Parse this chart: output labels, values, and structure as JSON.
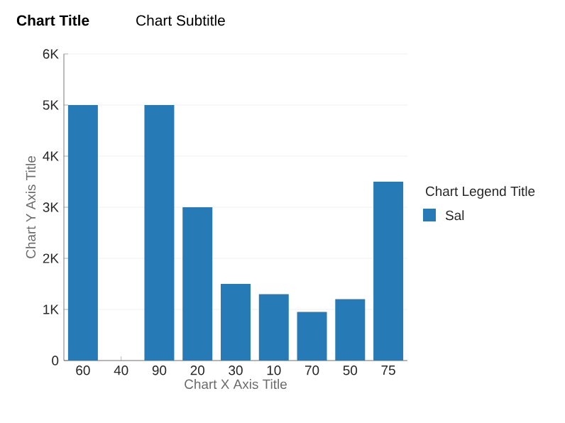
{
  "chart_data": {
    "type": "bar",
    "title": "Chart Title",
    "subtitle": "Chart Subtitle",
    "xlabel": "Chart X Axis Title",
    "ylabel": "Chart Y Axis Title",
    "legend_title": "Chart Legend Title",
    "categories": [
      "60",
      "40",
      "90",
      "20",
      "30",
      "10",
      "70",
      "50",
      "75"
    ],
    "series": [
      {
        "name": "Sal",
        "color": "#267ab6",
        "values": [
          5000,
          null,
          5000,
          3000,
          1500,
          1300,
          950,
          1200,
          3500
        ]
      }
    ],
    "ylim": [
      0,
      6000
    ],
    "yticks": [
      0,
      {
        "value": 1000,
        "label": "1K"
      },
      {
        "value": 2000,
        "label": "2K"
      },
      {
        "value": 3000,
        "label": "3K"
      },
      {
        "value": 4000,
        "label": "4K"
      },
      {
        "value": 5000,
        "label": "5K"
      },
      {
        "value": 6000,
        "label": "6K"
      }
    ],
    "grid": "y",
    "legend": "right"
  }
}
